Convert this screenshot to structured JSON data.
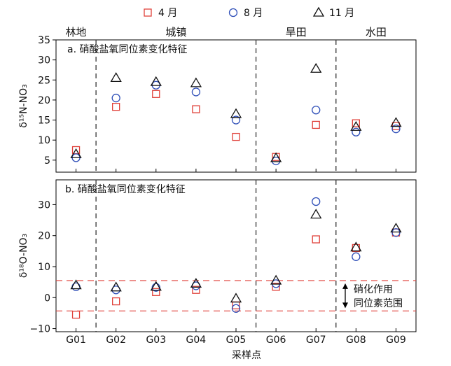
{
  "chart_data": [
    {
      "type": "scatter",
      "title": "a. 硝酸盐氧同位素变化特征",
      "ylabel": "δ¹⁵N-NO₃",
      "ylim": [
        2,
        35
      ],
      "yticks": [
        5,
        10,
        15,
        20,
        25,
        30,
        35
      ],
      "categories": [
        "G01",
        "G02",
        "G03",
        "G04",
        "G05",
        "G06",
        "G07",
        "G08",
        "G09"
      ],
      "series": [
        {
          "name": "4 月",
          "values": [
            7.5,
            18.3,
            21.5,
            17.7,
            10.8,
            5.8,
            13.8,
            14.2,
            13.5
          ]
        },
        {
          "name": "8 月",
          "values": [
            5.6,
            20.5,
            23.7,
            22.0,
            15.0,
            4.8,
            17.5,
            12.0,
            12.8
          ]
        },
        {
          "name": "11 月",
          "values": [
            6.5,
            25.5,
            24.5,
            24.2,
            16.5,
            5.5,
            27.8,
            13.3,
            14.3
          ]
        }
      ]
    },
    {
      "type": "scatter",
      "title": "b. 硝酸盐氧同位素变化特征",
      "ylabel": "δ¹⁸O-NO₃",
      "ylim": [
        -11,
        38
      ],
      "yticks": [
        -10,
        0,
        10,
        20,
        30
      ],
      "categories": [
        "G01",
        "G02",
        "G03",
        "G04",
        "G05",
        "G06",
        "G07",
        "G08",
        "G09"
      ],
      "series": [
        {
          "name": "4 月",
          "values": [
            -5.5,
            -1.2,
            1.8,
            2.5,
            -2.5,
            3.5,
            18.8,
            16.0,
            21.0
          ]
        },
        {
          "name": "8 月",
          "values": [
            3.5,
            2.5,
            3.3,
            3.8,
            -3.5,
            4.5,
            31.0,
            13.2,
            21.0
          ]
        },
        {
          "name": "11 月",
          "values": [
            4.0,
            3.3,
            3.5,
            4.5,
            -0.3,
            5.5,
            26.8,
            16.2,
            22.3
          ]
        }
      ],
      "reference_lines": [
        5.5,
        -4.3
      ],
      "annotation": [
        "硝化作用",
        "同位素范围"
      ]
    }
  ],
  "legend": [
    {
      "label": "4 月",
      "marker": "square",
      "color": "#e0413a"
    },
    {
      "label": "8 月",
      "marker": "circle",
      "color": "#2f4fb8"
    },
    {
      "label": "11 月",
      "marker": "triangle",
      "color": "#111111"
    }
  ],
  "regions": [
    {
      "label": "林地",
      "start": 0,
      "end": 1
    },
    {
      "label": "城镇",
      "start": 1,
      "end": 5
    },
    {
      "label": "旱田",
      "start": 5,
      "end": 7
    },
    {
      "label": "水田",
      "start": 7,
      "end": 9
    }
  ],
  "xlabel": "采样点",
  "colors": {
    "apr": "#e0413a",
    "aug": "#2f4fb8",
    "nov": "#111111",
    "ref_line": "#e0413a"
  }
}
